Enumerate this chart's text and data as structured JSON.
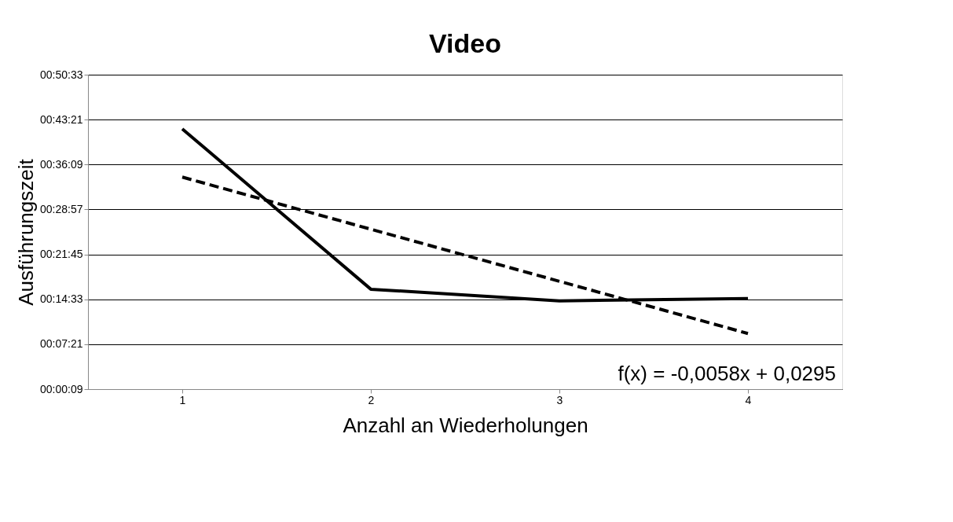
{
  "chart_data": {
    "type": "line",
    "title": "Video",
    "xlabel": "Anzahl an Wiederholungen",
    "ylabel": "Ausführungszeit",
    "categories": [
      "1",
      "2",
      "3",
      "4"
    ],
    "series": [
      {
        "color": "#000000",
        "line_style": "solid",
        "values": [
          2512,
          970,
          858,
          880
        ]
      },
      {
        "type": "line",
        "color": "#000000",
        "line_style": "dashed",
        "values": [
          2048,
          1547,
          1046,
          544
        ]
      }
    ],
    "ylim": [
      9,
      3033
    ],
    "yticks": [
      {
        "value": 9,
        "label": "00:00:09"
      },
      {
        "value": 441,
        "label": "00:07:21"
      },
      {
        "value": 873,
        "label": "00:14:33"
      },
      {
        "value": 1305,
        "label": "00:21:45"
      },
      {
        "value": 1737,
        "label": "00:28:57"
      },
      {
        "value": 2169,
        "label": "00:36:09"
      },
      {
        "value": 2601,
        "label": "00:43:21"
      },
      {
        "value": 3033,
        "label": "00:50:33"
      }
    ],
    "grid": "y",
    "marker": "none",
    "annotations": [
      "f(x) = -0,0058x + 0,0295"
    ]
  }
}
